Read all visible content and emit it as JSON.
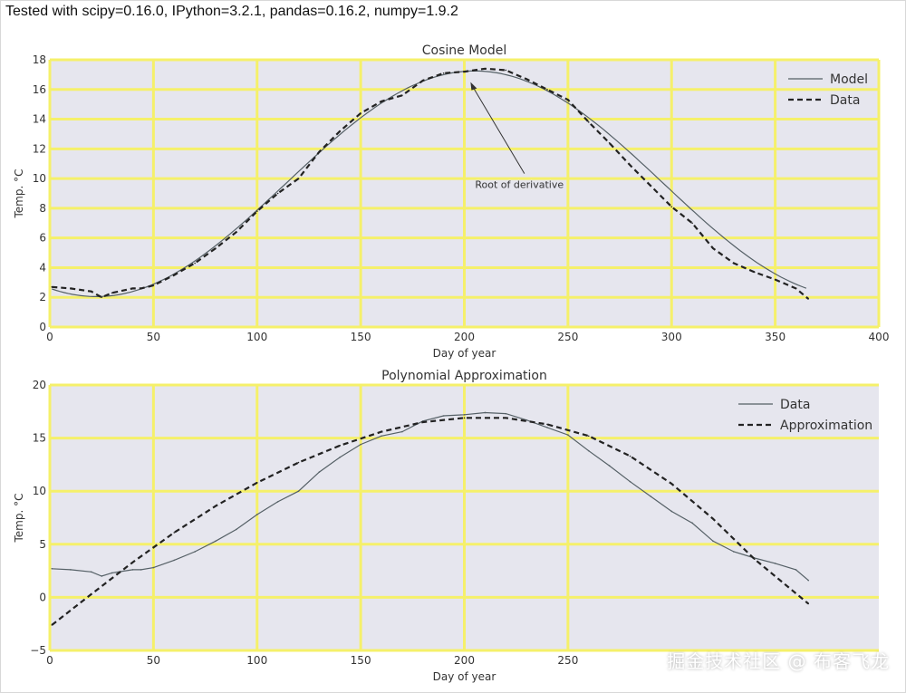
{
  "header": {
    "text": "Tested with scipy=0.16.0, IPython=3.2.1, pandas=0.16.2, numpy=1.9.2"
  },
  "watermark": "掘金技术社区 @ 布客飞龙",
  "colors": {
    "background": "#e6e6ee",
    "grid": "#f5f06a",
    "axis_text": "#333333",
    "model_line": "#556066",
    "data_dash": "#222222"
  },
  "chart_data": [
    {
      "type": "line",
      "title": "Cosine Model",
      "xlabel": "Day of year",
      "ylabel": "Temp. °C",
      "xlim": [
        0,
        400
      ],
      "ylim": [
        0,
        18
      ],
      "xticks": [
        0,
        50,
        100,
        150,
        200,
        250,
        300,
        350,
        400
      ],
      "yticks": [
        0,
        2,
        4,
        6,
        8,
        10,
        12,
        14,
        16,
        18
      ],
      "grid": true,
      "legend": "top-right",
      "series": [
        {
          "name": "Model",
          "style": "solid",
          "model": {
            "mean": 9.65,
            "amplitude": 7.6,
            "phase_day": 205,
            "period": 365
          },
          "x": [
            1,
            366
          ]
        },
        {
          "name": "Data",
          "style": "dashed",
          "x": [
            1,
            10,
            20,
            25,
            30,
            40,
            44,
            50,
            60,
            70,
            80,
            90,
            100,
            110,
            120,
            130,
            140,
            150,
            160,
            170,
            180,
            190,
            200,
            210,
            220,
            230,
            240,
            250,
            260,
            270,
            280,
            290,
            300,
            310,
            320,
            330,
            340,
            350,
            360,
            366
          ],
          "y": [
            2.7,
            2.6,
            2.4,
            2.0,
            2.3,
            2.6,
            2.6,
            2.8,
            3.5,
            4.3,
            5.3,
            6.4,
            7.8,
            9.0,
            10.0,
            11.8,
            13.2,
            14.4,
            15.2,
            15.6,
            16.6,
            17.1,
            17.2,
            17.4,
            17.3,
            16.7,
            16.0,
            15.3,
            13.8,
            12.4,
            10.9,
            9.5,
            8.1,
            7.0,
            5.3,
            4.3,
            3.7,
            3.2,
            2.6,
            1.9
          ]
        }
      ],
      "annotations": [
        {
          "text": "Root of derivative",
          "x": 203,
          "y": 16.5,
          "text_x": 203,
          "text_y": 9.6
        }
      ]
    },
    {
      "type": "line",
      "title": "Polynomial Approximation",
      "xlabel": "Day of year",
      "ylabel": "Temp. °C",
      "xlim": [
        0,
        400
      ],
      "ylim": [
        -5,
        20
      ],
      "xticks": [
        0,
        50,
        100,
        150,
        200,
        250
      ],
      "yticks": [
        -5,
        0,
        5,
        10,
        15,
        20
      ],
      "grid": true,
      "legend": "top-right",
      "series": [
        {
          "name": "Data",
          "style": "solid",
          "x": [
            1,
            10,
            20,
            25,
            30,
            40,
            44,
            50,
            60,
            70,
            80,
            90,
            100,
            110,
            120,
            130,
            140,
            150,
            160,
            170,
            180,
            190,
            200,
            210,
            220,
            230,
            240,
            250,
            260,
            270,
            280,
            290,
            300,
            310,
            320,
            330,
            340,
            350,
            360,
            366
          ],
          "y": [
            2.7,
            2.6,
            2.4,
            2.0,
            2.3,
            2.6,
            2.6,
            2.8,
            3.5,
            4.3,
            5.3,
            6.4,
            7.8,
            9.0,
            10.0,
            11.8,
            13.2,
            14.4,
            15.2,
            15.6,
            16.6,
            17.1,
            17.2,
            17.4,
            17.3,
            16.7,
            16.0,
            15.3,
            13.8,
            12.4,
            10.9,
            9.5,
            8.1,
            7.0,
            5.3,
            4.3,
            3.7,
            3.2,
            2.6,
            1.6
          ]
        },
        {
          "name": "Approximation",
          "style": "dashed",
          "x": [
            1,
            20,
            40,
            60,
            80,
            100,
            120,
            140,
            160,
            180,
            200,
            220,
            240,
            260,
            280,
            300,
            320,
            340,
            366
          ],
          "y": [
            -2.6,
            0.3,
            3.3,
            6.1,
            8.6,
            10.8,
            12.7,
            14.3,
            15.6,
            16.5,
            16.9,
            16.9,
            16.3,
            15.2,
            13.3,
            10.7,
            7.4,
            3.6,
            -0.6
          ]
        }
      ]
    }
  ]
}
